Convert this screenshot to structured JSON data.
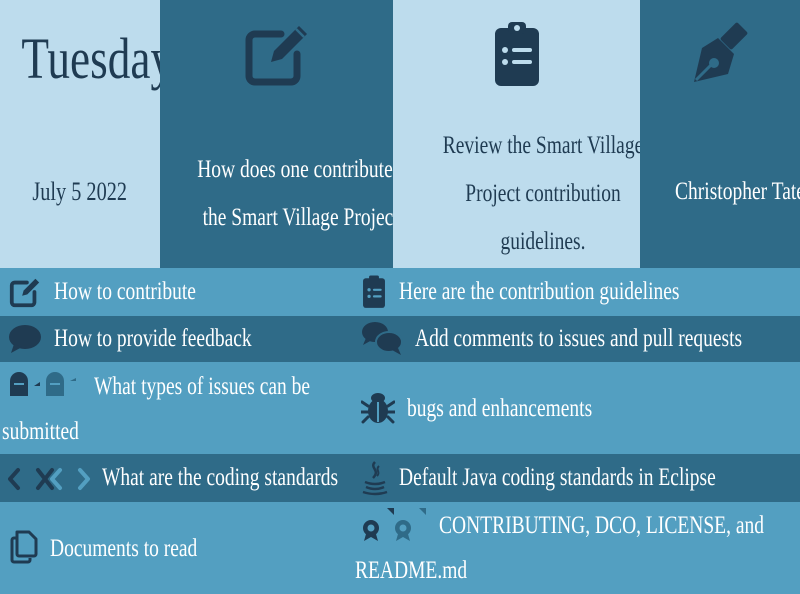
{
  "header": {
    "day": "Tuesday",
    "date": "July 5 2022",
    "question": "How does one contribute to the Smart Village Project?",
    "task": "Review the Smart Village Project contribution guidelines.",
    "person": "Christopher Tate",
    "icons": [
      "edit-icon",
      "clipboard-list-icon",
      "fountain-pen-icon"
    ]
  },
  "rows": [
    {
      "left": "How to contribute",
      "right": "Here are the contribution guidelines",
      "left_icon": "edit-icon",
      "right_icon": "clipboard-list-icon"
    },
    {
      "left": "How to provide feedback",
      "right": "Add comments to issues and pull requests",
      "left_icon": "comment-icon",
      "right_icon": "comments-icon"
    },
    {
      "left_line1": "What types of issues can be",
      "left_line2": "submitted",
      "right": "bugs and enhancements",
      "left_icon": "tombstone-icon",
      "right_icon": "bug-icon"
    },
    {
      "left": "What are the coding standards",
      "right": "Default Java coding standards in Eclipse",
      "left_icon": "code-icon",
      "right_icon": "java-icon"
    },
    {
      "left": "Documents to read",
      "right_line1": "CONTRIBUTING, DCO, LICENSE, and",
      "right_line2": "README.md",
      "left_icon": "copy-icon",
      "right_icon": "award-icon"
    }
  ],
  "colors": {
    "light": "#bddced",
    "dark": "#2f6b88",
    "mid": "#539fc1",
    "ink": "#1f3b52"
  }
}
